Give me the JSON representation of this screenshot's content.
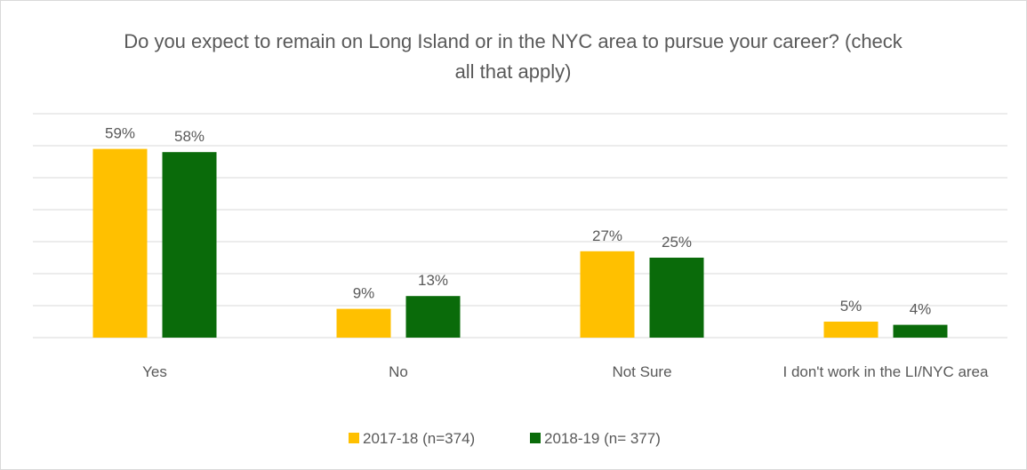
{
  "chart_data": {
    "type": "bar",
    "title": "Do you expect to remain on Long Island or in the NYC area to pursue your career? (check all that apply)",
    "categories": [
      "Yes",
      "No",
      "Not Sure",
      "I don't work in the LI/NYC area"
    ],
    "series": [
      {
        "name": "2017-18 (n=374)",
        "color": "#ffc000",
        "values": [
          59,
          9,
          27,
          5
        ],
        "value_labels": [
          "59%",
          "9%",
          "27%",
          "5%"
        ]
      },
      {
        "name": "2018-19 (n= 377)",
        "color": "#0a6b0a",
        "values": [
          58,
          13,
          25,
          4
        ],
        "value_labels": [
          "58%",
          "13%",
          "25%",
          "4%"
        ]
      }
    ],
    "ylim": [
      0,
      70
    ],
    "yticks": [
      0,
      10,
      20,
      30,
      40,
      50,
      60,
      70
    ],
    "grid": true,
    "legend": "bottom"
  }
}
